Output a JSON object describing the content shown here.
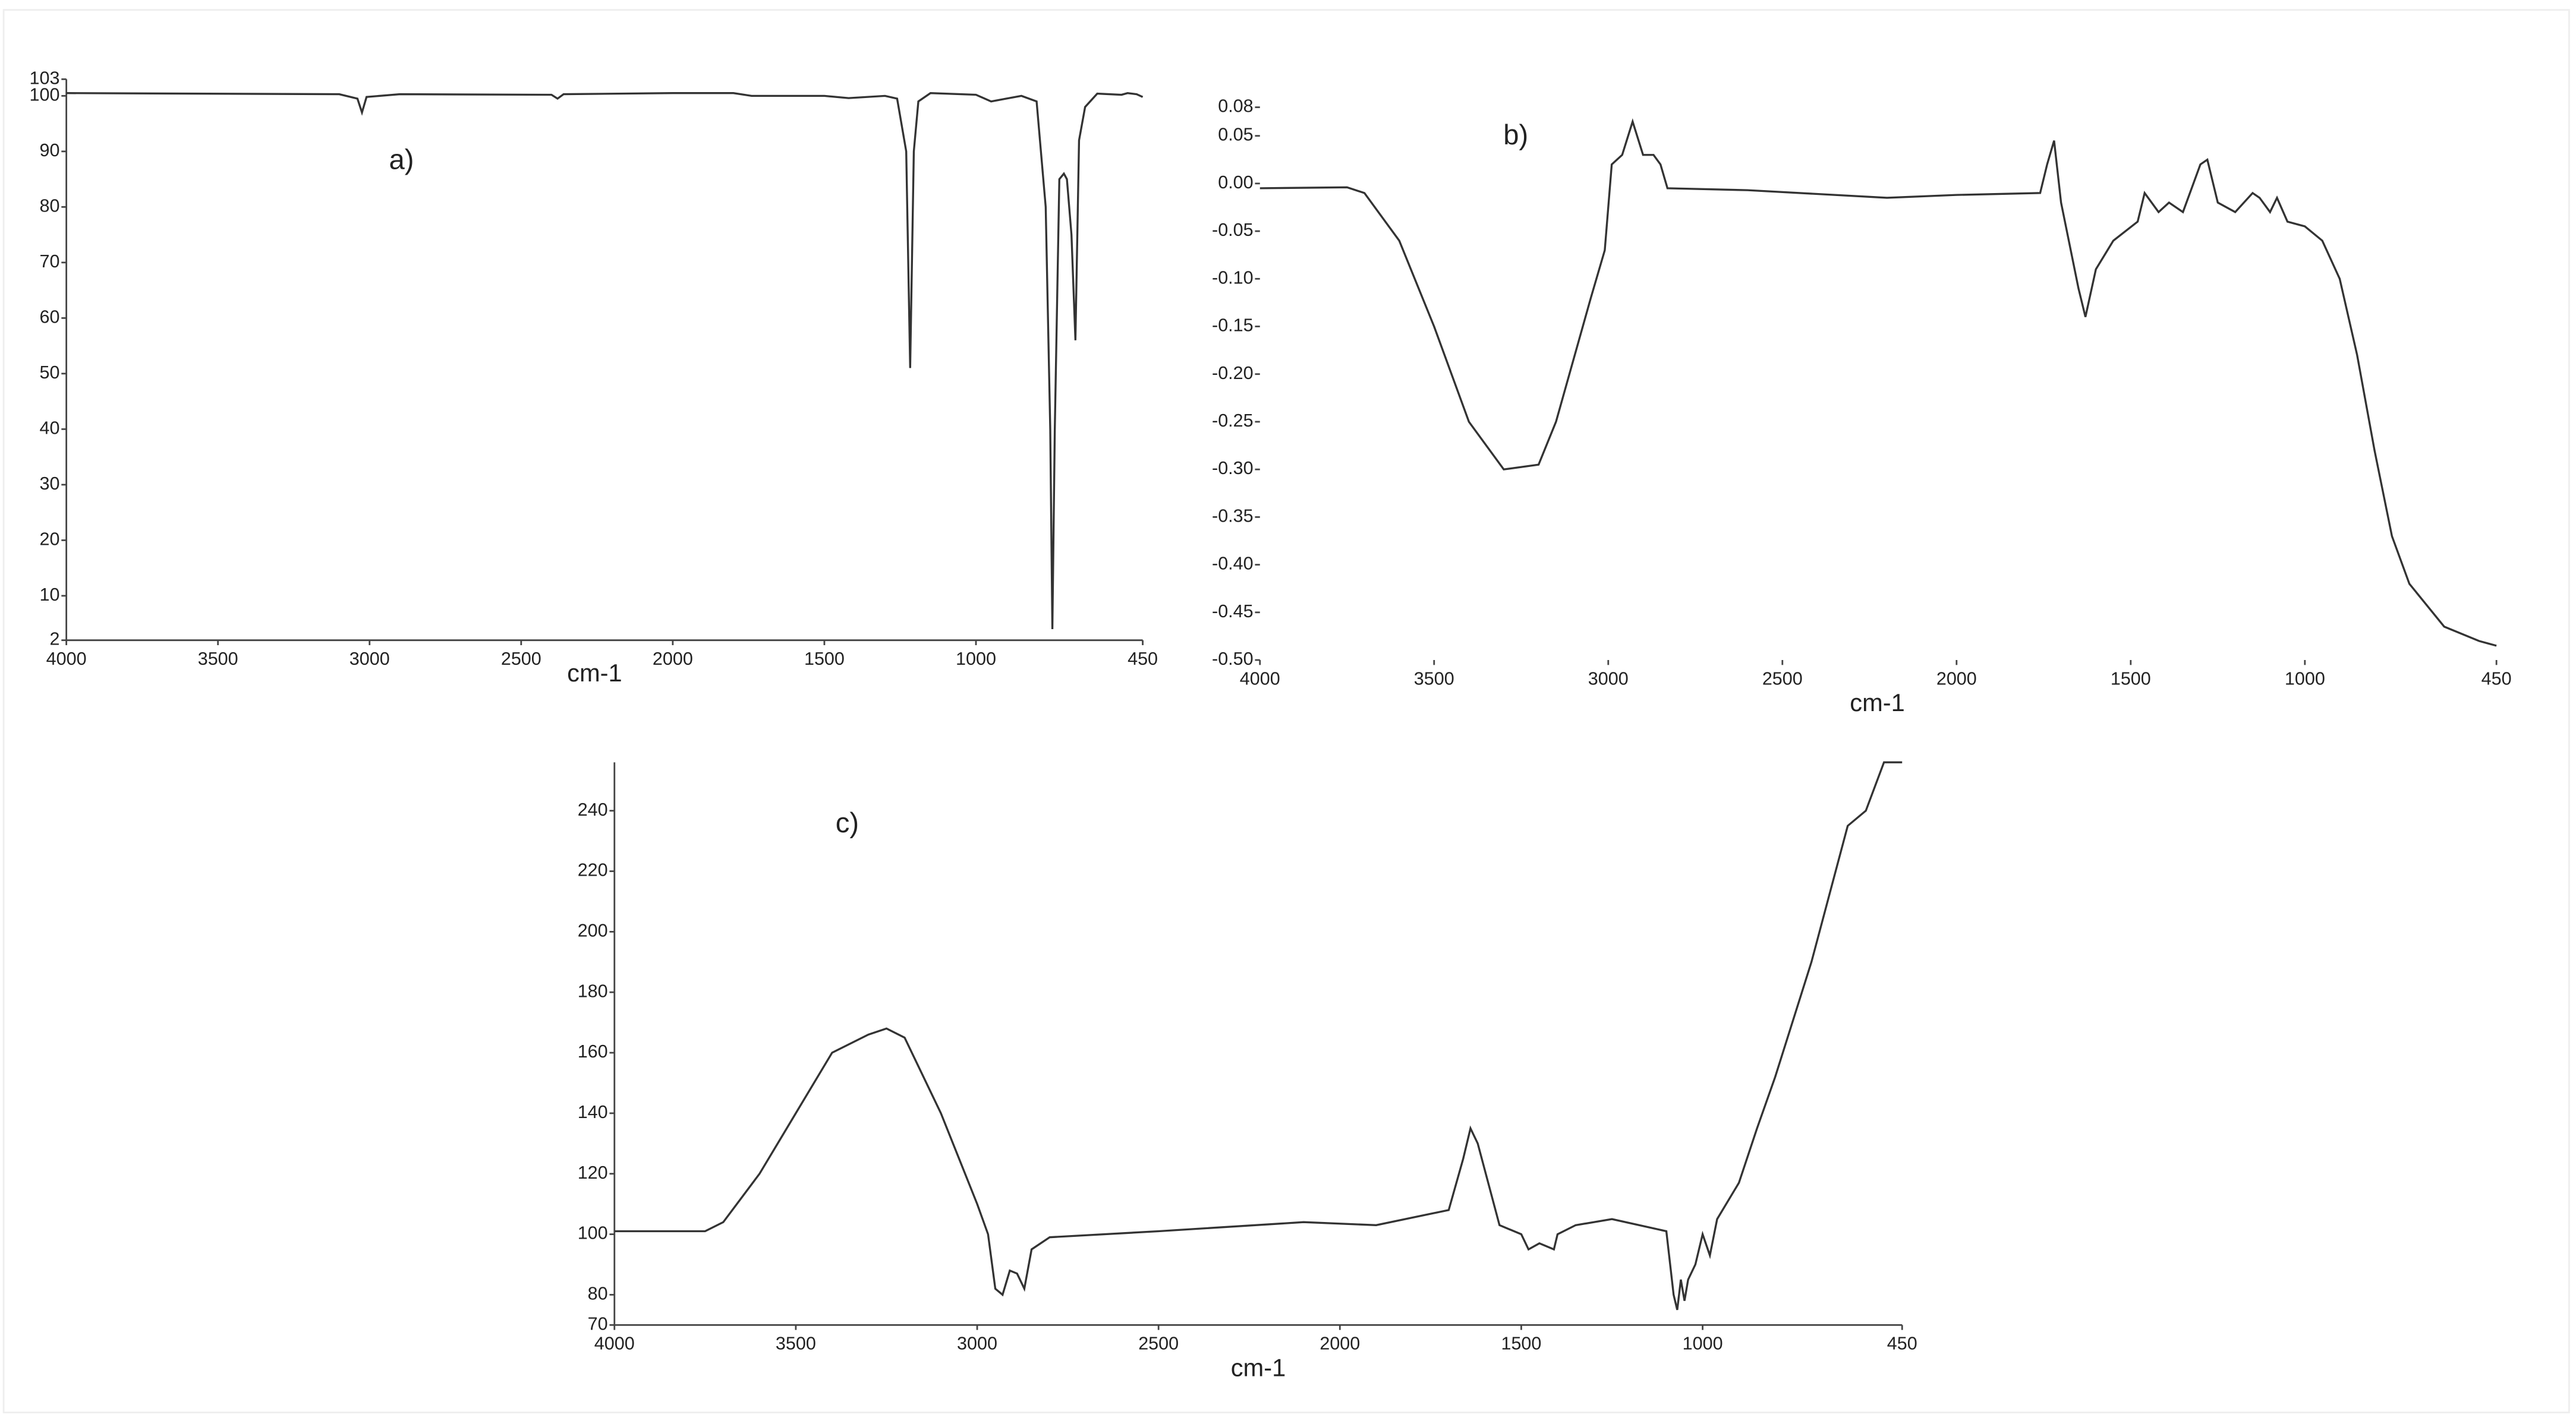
{
  "chart_data": [
    {
      "type": "line",
      "annotation": "a)",
      "xlabel": "cm-1",
      "xlim": [
        4000,
        450
      ],
      "ylim": [
        2,
        103
      ],
      "xticks": [
        4000,
        3500,
        3000,
        2500,
        2000,
        1500,
        1000,
        450
      ],
      "yticks": [
        2,
        10,
        20,
        30,
        40,
        50,
        60,
        70,
        80,
        90,
        100,
        103
      ],
      "x": [
        4000,
        3100,
        3040,
        3025,
        3010,
        2900,
        2400,
        2380,
        2360,
        2000,
        1800,
        1740,
        1500,
        1420,
        1300,
        1260,
        1230,
        1217,
        1205,
        1190,
        1150,
        1000,
        950,
        900,
        850,
        800,
        770,
        755,
        748,
        740,
        725,
        710,
        700,
        685,
        672,
        660,
        640,
        600,
        520,
        500,
        470,
        450
      ],
      "series": [
        {
          "color": "#333333",
          "values": [
            100.5,
            100.3,
            99.5,
            97,
            99.8,
            100.3,
            100.2,
            99.5,
            100.3,
            100.5,
            100.5,
            100,
            100,
            99.6,
            100,
            99.5,
            90,
            51,
            90,
            99,
            100.5,
            100.2,
            99,
            99.5,
            100,
            99,
            80,
            40,
            4,
            40,
            85,
            86,
            85,
            75,
            56,
            92,
            98,
            100.4,
            100.2,
            100.5,
            100.3,
            99.8
          ]
        }
      ]
    },
    {
      "type": "line",
      "annotation": "b)",
      "xlabel": "cm-1",
      "xlim": [
        4000,
        450
      ],
      "ylim": [
        -0.5,
        0.08
      ],
      "xticks": [
        4000,
        3500,
        3000,
        2500,
        2000,
        1500,
        1000,
        450
      ],
      "yticks": [
        0.08,
        0.05,
        {
          "value": 0,
          "label": "0.00"
        },
        {
          "value": -0.05,
          "label": "-0.05"
        },
        {
          "value": -0.1,
          "label": "-0.10"
        },
        {
          "value": -0.15,
          "label": "-0.15"
        },
        {
          "value": -0.2,
          "label": "-0.20"
        },
        {
          "value": -0.25,
          "label": "-0.25"
        },
        {
          "value": -0.3,
          "label": "-0.30"
        },
        {
          "value": -0.35,
          "label": "-0.35"
        },
        {
          "value": -0.4,
          "label": "-0.40"
        },
        {
          "value": -0.45,
          "label": "-0.45"
        },
        {
          "value": -0.5,
          "label": "-0.50"
        }
      ],
      "x": [
        4000,
        3750,
        3700,
        3600,
        3500,
        3400,
        3300,
        3200,
        3150,
        3050,
        3010,
        2990,
        2960,
        2930,
        2900,
        2870,
        2850,
        2830,
        2600,
        2200,
        2000,
        1760,
        1740,
        1720,
        1700,
        1650,
        1630,
        1600,
        1550,
        1480,
        1460,
        1420,
        1390,
        1350,
        1300,
        1280,
        1250,
        1200,
        1150,
        1130,
        1100,
        1080,
        1050,
        1000,
        950,
        900,
        850,
        800,
        750,
        700,
        600,
        500,
        450
      ],
      "series": [
        {
          "color": "#333333",
          "values": [
            -0.005,
            -0.004,
            -0.01,
            -0.06,
            -0.15,
            -0.25,
            -0.3,
            -0.295,
            -0.25,
            -0.12,
            -0.07,
            0.02,
            0.03,
            0.065,
            0.03,
            0.03,
            0.02,
            -0.005,
            -0.007,
            -0.015,
            -0.012,
            -0.01,
            0.02,
            0.045,
            -0.02,
            -0.11,
            -0.14,
            -0.09,
            -0.06,
            -0.04,
            -0.01,
            -0.03,
            -0.02,
            -0.03,
            0.02,
            0.025,
            -0.02,
            -0.03,
            -0.01,
            -0.015,
            -0.03,
            -0.015,
            -0.04,
            -0.045,
            -0.06,
            -0.1,
            -0.18,
            -0.28,
            -0.37,
            -0.42,
            -0.465,
            -0.48,
            -0.485
          ]
        }
      ]
    },
    {
      "type": "line",
      "annotation": "c)",
      "xlabel": "cm-1",
      "xlim": [
        4000,
        450
      ],
      "ylim": [
        70,
        256
      ],
      "xticks": [
        4000,
        3500,
        3000,
        2500,
        2000,
        1500,
        1000,
        450
      ],
      "yticks": [
        70,
        80,
        100,
        120,
        140,
        160,
        180,
        200,
        220,
        240
      ],
      "x": [
        4000,
        3750,
        3700,
        3600,
        3500,
        3400,
        3300,
        3250,
        3200,
        3100,
        3050,
        3000,
        2970,
        2950,
        2930,
        2910,
        2890,
        2870,
        2850,
        2800,
        2500,
        2100,
        1900,
        1700,
        1660,
        1640,
        1620,
        1560,
        1500,
        1480,
        1450,
        1410,
        1400,
        1350,
        1250,
        1100,
        1080,
        1070,
        1060,
        1050,
        1040,
        1020,
        1000,
        980,
        960,
        900,
        850,
        800,
        700,
        600,
        550,
        500,
        450
      ],
      "series": [
        {
          "color": "#333333",
          "values": [
            101,
            101,
            104,
            120,
            140,
            160,
            166,
            168,
            165,
            140,
            125,
            110,
            100,
            82,
            80,
            88,
            87,
            82,
            95,
            99,
            101,
            104,
            103,
            108,
            125,
            135,
            130,
            103,
            100,
            95,
            97,
            95,
            100,
            103,
            105,
            101,
            80,
            75,
            85,
            78,
            85,
            90,
            100,
            93,
            105,
            117,
            135,
            152,
            190,
            235,
            240,
            256,
            256
          ]
        }
      ]
    }
  ]
}
